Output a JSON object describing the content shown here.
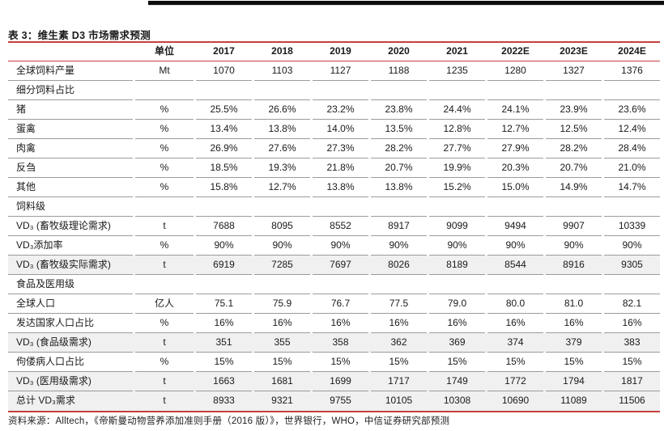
{
  "page": {
    "title": "表 3：维生素 D3 市场需求预测",
    "source": "资料来源：Alltech，《帝斯曼动物营养添加准则手册（2016 版）》，世界银行，WHO，中信证券研究部预测"
  },
  "table": {
    "unit_header": "单位",
    "columns": [
      "2017",
      "2018",
      "2019",
      "2020",
      "2021",
      "2022E",
      "2023E",
      "2024E"
    ],
    "rows": [
      {
        "label": "全球饲料产量",
        "unit": "Mt",
        "type": "data",
        "highlight": false,
        "values": [
          "1070",
          "1103",
          "1127",
          "1188",
          "1235",
          "1280",
          "1327",
          "1376"
        ]
      },
      {
        "label": "细分饲料占比",
        "unit": "",
        "type": "section",
        "highlight": false,
        "values": []
      },
      {
        "label": "猪",
        "unit": "%",
        "type": "data",
        "highlight": false,
        "values": [
          "25.5%",
          "26.6%",
          "23.2%",
          "23.8%",
          "24.4%",
          "24.1%",
          "23.9%",
          "23.6%"
        ]
      },
      {
        "label": "蛋禽",
        "unit": "%",
        "type": "data",
        "highlight": false,
        "values": [
          "13.4%",
          "13.8%",
          "14.0%",
          "13.5%",
          "12.8%",
          "12.7%",
          "12.5%",
          "12.4%"
        ]
      },
      {
        "label": "肉禽",
        "unit": "%",
        "type": "data",
        "highlight": false,
        "values": [
          "26.9%",
          "27.6%",
          "27.3%",
          "28.2%",
          "27.7%",
          "27.9%",
          "28.2%",
          "28.4%"
        ]
      },
      {
        "label": "反刍",
        "unit": "%",
        "type": "data",
        "highlight": false,
        "values": [
          "18.5%",
          "19.3%",
          "21.8%",
          "20.7%",
          "19.9%",
          "20.3%",
          "20.7%",
          "21.0%"
        ]
      },
      {
        "label": "其他",
        "unit": "%",
        "type": "data",
        "highlight": false,
        "values": [
          "15.8%",
          "12.7%",
          "13.8%",
          "13.8%",
          "15.2%",
          "15.0%",
          "14.9%",
          "14.7%"
        ]
      },
      {
        "label": "饲料级",
        "unit": "",
        "type": "section",
        "highlight": false,
        "values": []
      },
      {
        "label": "VD₃ (畜牧级理论需求)",
        "unit": "t",
        "type": "data",
        "highlight": false,
        "values": [
          "7688",
          "8095",
          "8552",
          "8917",
          "9099",
          "9494",
          "9907",
          "10339"
        ]
      },
      {
        "label": "VD₃添加率",
        "unit": "%",
        "type": "data",
        "highlight": false,
        "values": [
          "90%",
          "90%",
          "90%",
          "90%",
          "90%",
          "90%",
          "90%",
          "90%"
        ]
      },
      {
        "label": "VD₃ (畜牧级实际需求)",
        "unit": "t",
        "type": "data",
        "highlight": true,
        "values": [
          "6919",
          "7285",
          "7697",
          "8026",
          "8189",
          "8544",
          "8916",
          "9305"
        ]
      },
      {
        "label": "食品及医用级",
        "unit": "",
        "type": "section",
        "highlight": false,
        "values": []
      },
      {
        "label": "全球人口",
        "unit": "亿人",
        "type": "data",
        "highlight": false,
        "values": [
          "75.1",
          "75.9",
          "76.7",
          "77.5",
          "79.0",
          "80.0",
          "81.0",
          "82.1"
        ]
      },
      {
        "label": "发达国家人口占比",
        "unit": "%",
        "type": "data",
        "highlight": false,
        "values": [
          "16%",
          "16%",
          "16%",
          "16%",
          "16%",
          "16%",
          "16%",
          "16%"
        ]
      },
      {
        "label": "VD₃ (食品级需求)",
        "unit": "t",
        "type": "data",
        "highlight": true,
        "values": [
          "351",
          "355",
          "358",
          "362",
          "369",
          "374",
          "379",
          "383"
        ]
      },
      {
        "label": "佝偻病人口占比",
        "unit": "%",
        "type": "data",
        "highlight": false,
        "values": [
          "15%",
          "15%",
          "15%",
          "15%",
          "15%",
          "15%",
          "15%",
          "15%"
        ]
      },
      {
        "label": "VD₃ (医用级需求)",
        "unit": "t",
        "type": "data",
        "highlight": true,
        "values": [
          "1663",
          "1681",
          "1699",
          "1717",
          "1749",
          "1772",
          "1794",
          "1817"
        ]
      },
      {
        "label": "总计 VD₃需求",
        "unit": "t",
        "type": "data",
        "highlight": true,
        "values": [
          "8933",
          "9321",
          "9755",
          "10105",
          "10308",
          "10690",
          "11089",
          "11506"
        ]
      }
    ]
  },
  "colors": {
    "accent_red": "#c5403d",
    "separator_gray": "#9b9b9b",
    "row_highlight": "#f0f0f0",
    "header_bar_black": "#0d0d0d"
  }
}
